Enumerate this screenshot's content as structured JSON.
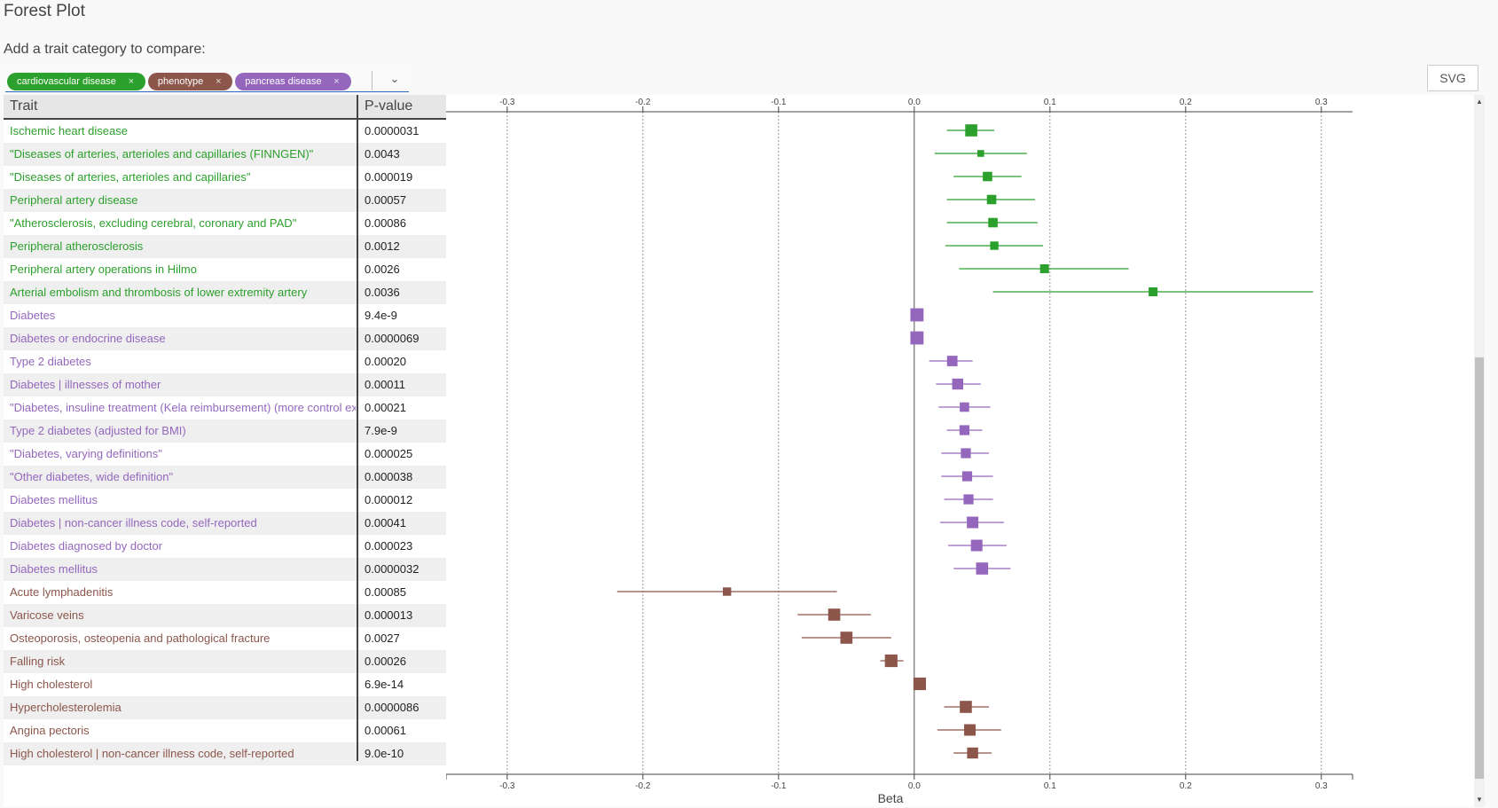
{
  "page": {
    "title": "Forest Plot",
    "add_label": "Add a trait category to compare:"
  },
  "selector": {
    "tags": [
      {
        "label": "cardiovascular disease",
        "color": "#2ca02c"
      },
      {
        "label": "phenotype",
        "color": "#8c564b"
      },
      {
        "label": "pancreas disease",
        "color": "#9467bd"
      }
    ],
    "remove_glyph": "×",
    "chevron": "⌄"
  },
  "toolbar": {
    "svg_label": "SVG"
  },
  "table": {
    "col_trait": "Trait",
    "col_pvalue": "P-value"
  },
  "colors": {
    "cardiovascular": "#2ca02c",
    "pancreas": "#9467bd",
    "phenotype": "#8c564b"
  },
  "chart_data": {
    "type": "forest",
    "xlabel": "Beta",
    "xlim": [
      -0.345,
      0.323
    ],
    "xticks": [
      -0.3,
      -0.2,
      -0.1,
      0.0,
      0.1,
      0.2,
      0.3
    ],
    "xtick_labels": [
      "-0.3",
      "-0.2",
      "-0.1",
      "0.0",
      "0.1",
      "0.2",
      "0.3"
    ],
    "vertical_gridlines": true,
    "rows": [
      {
        "trait": "Ischemic heart disease",
        "pvalue": "0.0000031",
        "category": "cardiovascular",
        "beta": 0.042,
        "lo": 0.024,
        "hi": 0.059,
        "weight": 0.8
      },
      {
        "trait": "\"Diseases of arteries, arterioles and capillaries (FINNGEN)\"",
        "pvalue": "0.0043",
        "category": "cardiovascular",
        "beta": 0.049,
        "lo": 0.015,
        "hi": 0.083,
        "weight": 0.3
      },
      {
        "trait": "\"Diseases of arteries, arterioles and capillaries\"",
        "pvalue": "0.000019",
        "category": "cardiovascular",
        "beta": 0.054,
        "lo": 0.029,
        "hi": 0.079,
        "weight": 0.55
      },
      {
        "trait": "Peripheral artery disease",
        "pvalue": "0.00057",
        "category": "cardiovascular",
        "beta": 0.057,
        "lo": 0.024,
        "hi": 0.089,
        "weight": 0.55
      },
      {
        "trait": "\"Atherosclerosis, excluding cerebral, coronary and PAD\"",
        "pvalue": "0.00086",
        "category": "cardiovascular",
        "beta": 0.058,
        "lo": 0.024,
        "hi": 0.091,
        "weight": 0.55
      },
      {
        "trait": "Peripheral atherosclerosis",
        "pvalue": "0.0012",
        "category": "cardiovascular",
        "beta": 0.059,
        "lo": 0.023,
        "hi": 0.095,
        "weight": 0.45
      },
      {
        "trait": "Peripheral artery operations in Hilmo",
        "pvalue": "0.0026",
        "category": "cardiovascular",
        "beta": 0.096,
        "lo": 0.033,
        "hi": 0.158,
        "weight": 0.5
      },
      {
        "trait": "Arterial embolism and thrombosis of lower extremity artery",
        "pvalue": "0.0036",
        "category": "cardiovascular",
        "beta": 0.176,
        "lo": 0.058,
        "hi": 0.294,
        "weight": 0.5
      },
      {
        "trait": "Diabetes",
        "pvalue": "9.4e-9",
        "category": "pancreas",
        "beta": 0.002,
        "lo": 0.0,
        "hi": 0.004,
        "weight": 0.9
      },
      {
        "trait": "Diabetes or endocrine disease",
        "pvalue": "0.0000069",
        "category": "pancreas",
        "beta": 0.002,
        "lo": 0.0,
        "hi": 0.004,
        "weight": 0.9
      },
      {
        "trait": "Type 2 diabetes",
        "pvalue": "0.00020",
        "category": "pancreas",
        "beta": 0.028,
        "lo": 0.011,
        "hi": 0.043,
        "weight": 0.65
      },
      {
        "trait": "Diabetes | illnesses of mother",
        "pvalue": "0.00011",
        "category": "pancreas",
        "beta": 0.032,
        "lo": 0.016,
        "hi": 0.049,
        "weight": 0.7
      },
      {
        "trait": "\"Diabetes, insuline treatment (Kela reimbursement) (more control exclusions)\"",
        "pvalue": "0.00021",
        "category": "pancreas",
        "beta": 0.037,
        "lo": 0.018,
        "hi": 0.056,
        "weight": 0.55
      },
      {
        "trait": "Type 2 diabetes (adjusted for BMI)",
        "pvalue": "7.9e-9",
        "category": "pancreas",
        "beta": 0.037,
        "lo": 0.024,
        "hi": 0.05,
        "weight": 0.6
      },
      {
        "trait": "\"Diabetes, varying definitions\"",
        "pvalue": "0.000025",
        "category": "pancreas",
        "beta": 0.038,
        "lo": 0.02,
        "hi": 0.055,
        "weight": 0.6
      },
      {
        "trait": "\"Other diabetes, wide definition\"",
        "pvalue": "0.000038",
        "category": "pancreas",
        "beta": 0.039,
        "lo": 0.02,
        "hi": 0.058,
        "weight": 0.6
      },
      {
        "trait": "Diabetes mellitus",
        "pvalue": "0.000012",
        "category": "pancreas",
        "beta": 0.04,
        "lo": 0.022,
        "hi": 0.058,
        "weight": 0.6
      },
      {
        "trait": "Diabetes | non-cancer illness code, self-reported",
        "pvalue": "0.00041",
        "category": "pancreas",
        "beta": 0.043,
        "lo": 0.019,
        "hi": 0.066,
        "weight": 0.75
      },
      {
        "trait": "Diabetes diagnosed by doctor",
        "pvalue": "0.000023",
        "category": "pancreas",
        "beta": 0.046,
        "lo": 0.025,
        "hi": 0.068,
        "weight": 0.75
      },
      {
        "trait": "Diabetes mellitus",
        "pvalue": "0.0000032",
        "category": "pancreas",
        "beta": 0.05,
        "lo": 0.029,
        "hi": 0.071,
        "weight": 0.8
      },
      {
        "trait": "Acute lymphadenitis",
        "pvalue": "0.00085",
        "category": "phenotype",
        "beta": -0.138,
        "lo": -0.219,
        "hi": -0.057,
        "weight": 0.45
      },
      {
        "trait": "Varicose veins",
        "pvalue": "0.000013",
        "category": "phenotype",
        "beta": -0.059,
        "lo": -0.086,
        "hi": -0.032,
        "weight": 0.8
      },
      {
        "trait": "Osteoporosis, osteopenia and pathological fracture",
        "pvalue": "0.0027",
        "category": "phenotype",
        "beta": -0.05,
        "lo": -0.083,
        "hi": -0.017,
        "weight": 0.8
      },
      {
        "trait": "Falling risk",
        "pvalue": "0.00026",
        "category": "phenotype",
        "beta": -0.017,
        "lo": -0.025,
        "hi": -0.008,
        "weight": 0.85
      },
      {
        "trait": "High cholesterol",
        "pvalue": "6.9e-14",
        "category": "phenotype",
        "beta": 0.004,
        "lo": 0.001,
        "hi": 0.007,
        "weight": 0.85
      },
      {
        "trait": "Hypercholesterolemia",
        "pvalue": "0.0000086",
        "category": "phenotype",
        "beta": 0.038,
        "lo": 0.022,
        "hi": 0.055,
        "weight": 0.8
      },
      {
        "trait": "Angina pectoris",
        "pvalue": "0.00061",
        "category": "phenotype",
        "beta": 0.041,
        "lo": 0.017,
        "hi": 0.064,
        "weight": 0.75
      },
      {
        "trait": "High cholesterol | non-cancer illness code, self-reported",
        "pvalue": "9.0e-10",
        "category": "phenotype",
        "beta": 0.043,
        "lo": 0.029,
        "hi": 0.057,
        "weight": 0.7
      }
    ]
  }
}
